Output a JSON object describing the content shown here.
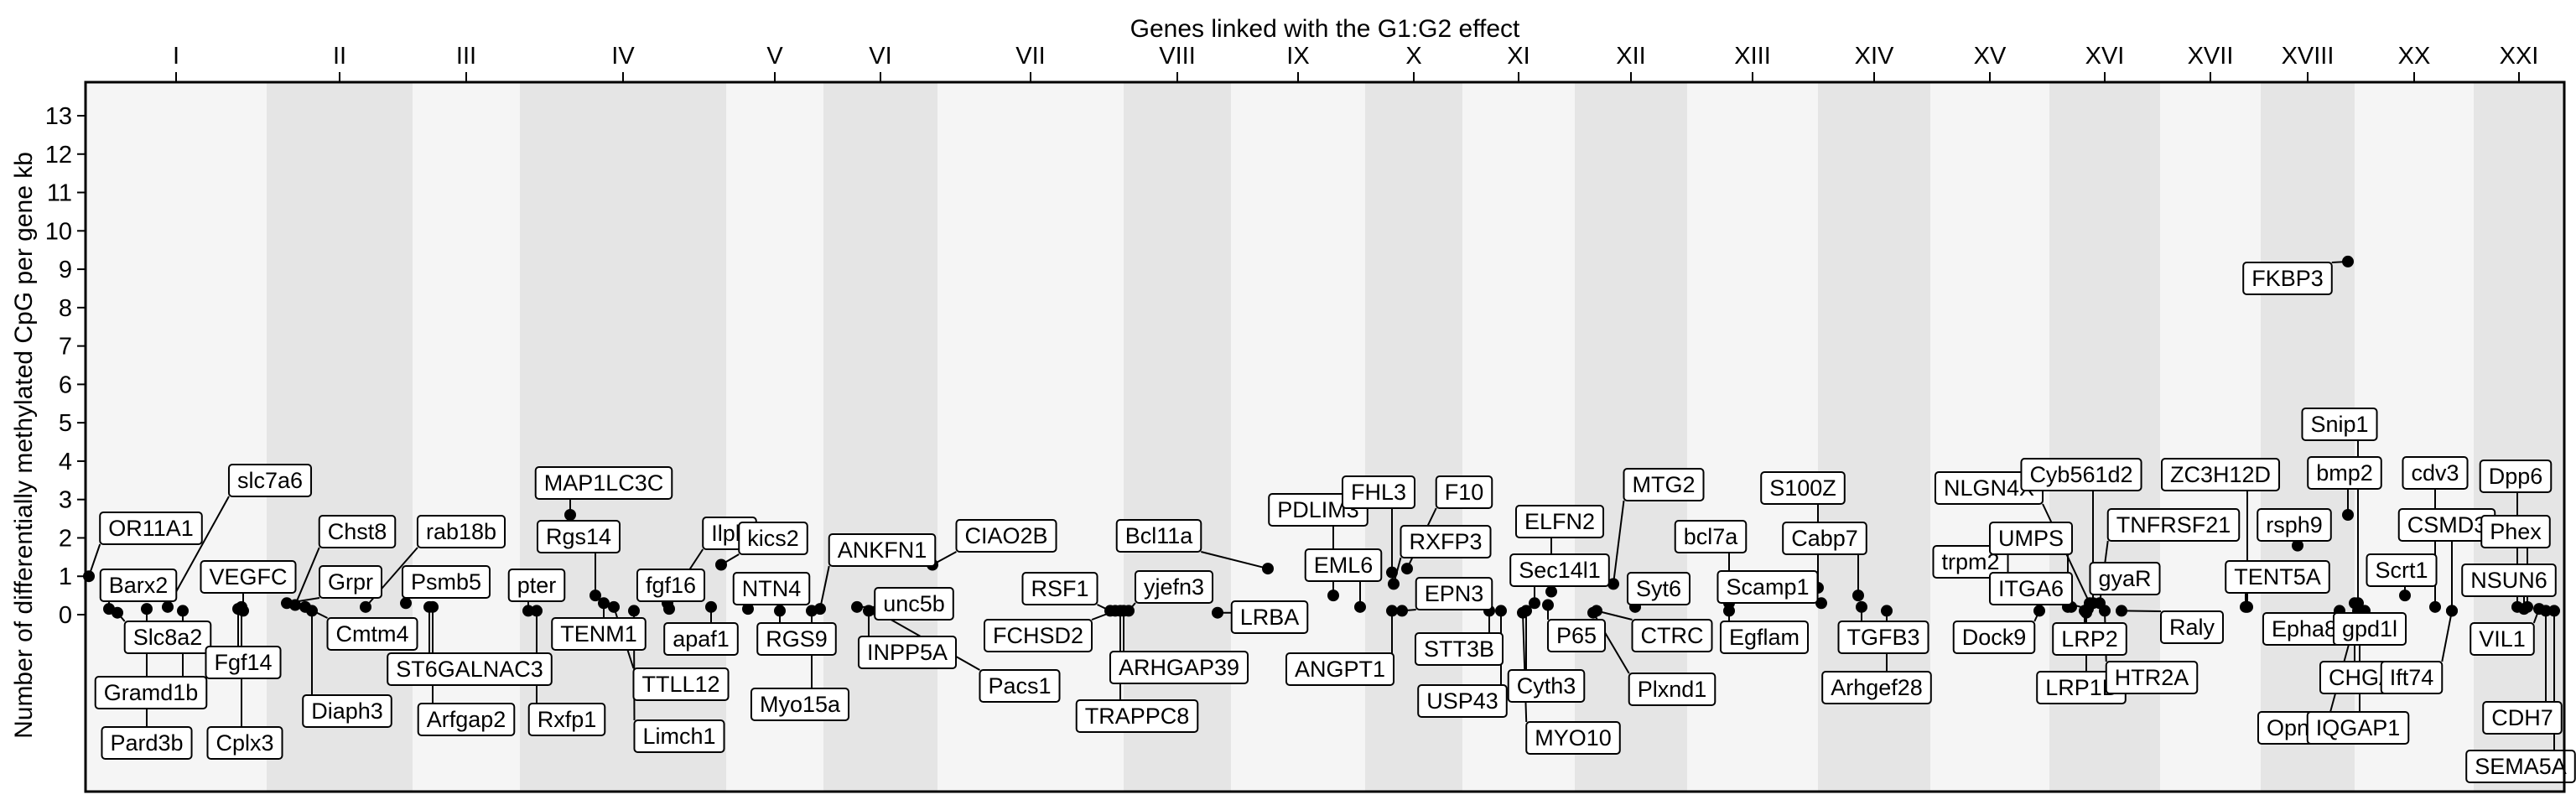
{
  "chart_data": {
    "type": "scatter",
    "title": "Genes linked with the G1:G2 effect",
    "ylabel": "Number of differentially methylated CpG per gene kb",
    "xlabel": "",
    "ylim": [
      -6,
      14
    ],
    "yticks": [
      0,
      1,
      2,
      3,
      4,
      5,
      6,
      7,
      8,
      9,
      10,
      11,
      12,
      13
    ],
    "grid": false,
    "chromosomes": [
      "I",
      "II",
      "III",
      "IV",
      "V",
      "VI",
      "VII",
      "VIII",
      "IX",
      "X",
      "XI",
      "XII",
      "XIII",
      "XIV",
      "XV",
      "XVI",
      "XVII",
      "XVIII",
      "XX",
      "XXI"
    ],
    "points": [
      {
        "gene": "OR11A1",
        "chrom": "I",
        "y": 1.0
      },
      {
        "gene": "Barx2",
        "chrom": "I",
        "y": 0.15
      },
      {
        "gene": "Slc8a2",
        "chrom": "I",
        "y": 0.05
      },
      {
        "gene": "Gramd1b",
        "chrom": "I",
        "y": 0.1
      },
      {
        "gene": "Pard3b",
        "chrom": "I",
        "y": 0.15
      },
      {
        "gene": "slc7a6",
        "chrom": "I",
        "y": 0.2
      },
      {
        "gene": "VEGFC",
        "chrom": "I",
        "y": 0.1
      },
      {
        "gene": "Fgf14",
        "chrom": "I",
        "y": 0.15
      },
      {
        "gene": "Cplx3",
        "chrom": "I",
        "y": 0.2
      },
      {
        "gene": "Grpr",
        "chrom": "II",
        "y": 0.3
      },
      {
        "gene": "Chst8",
        "chrom": "II",
        "y": 0.25
      },
      {
        "gene": "Cmtm4",
        "chrom": "II",
        "y": 0.2
      },
      {
        "gene": "Diaph3",
        "chrom": "II",
        "y": 0.1
      },
      {
        "gene": "rab18b",
        "chrom": "II",
        "y": 0.2
      },
      {
        "gene": "Psmb5",
        "chrom": "III",
        "y": 0.3
      },
      {
        "gene": "ST6GALNAC3",
        "chrom": "III",
        "y": 0.2
      },
      {
        "gene": "Arfgap2",
        "chrom": "III",
        "y": 0.2
      },
      {
        "gene": "pter",
        "chrom": "III",
        "y": 0.1
      },
      {
        "gene": "Rxfp1",
        "chrom": "III",
        "y": 0.1
      },
      {
        "gene": "MAP1LC3C",
        "chrom": "IV",
        "y": 2.6
      },
      {
        "gene": "Rgs14",
        "chrom": "IV",
        "y": 0.5
      },
      {
        "gene": "TENM1",
        "chrom": "IV",
        "y": 0.3
      },
      {
        "gene": "TTLL12",
        "chrom": "IV",
        "y": 0.2
      },
      {
        "gene": "Limch1",
        "chrom": "IV",
        "y": 0.1
      },
      {
        "gene": "Ilph",
        "chrom": "IV",
        "y": 0.3
      },
      {
        "gene": "fgf16",
        "chrom": "IV",
        "y": 0.15
      },
      {
        "gene": "apaf1",
        "chrom": "IV",
        "y": 0.2
      },
      {
        "gene": "kics2",
        "chrom": "IV",
        "y": 1.3
      },
      {
        "gene": "NTN4",
        "chrom": "V",
        "y": 0.15
      },
      {
        "gene": "RGS9",
        "chrom": "V",
        "y": 0.1
      },
      {
        "gene": "Myo15a",
        "chrom": "V",
        "y": 0.1
      },
      {
        "gene": "ANKFN1",
        "chrom": "V",
        "y": 0.15
      },
      {
        "gene": "unc5b",
        "chrom": "VI",
        "y": 0.2
      },
      {
        "gene": "INPP5A",
        "chrom": "VI",
        "y": 0.1
      },
      {
        "gene": "Pacs1",
        "chrom": "VI",
        "y": 0.05
      },
      {
        "gene": "CIAO2B",
        "chrom": "VI",
        "y": 1.3
      },
      {
        "gene": "RSF1",
        "chrom": "VII",
        "y": 0.1
      },
      {
        "gene": "FCHSD2",
        "chrom": "VIII",
        "y": 0.1
      },
      {
        "gene": "Bcl11a",
        "chrom": "VIII",
        "y": 1.2
      },
      {
        "gene": "yjefn3",
        "chrom": "VIII",
        "y": 0.1
      },
      {
        "gene": "ARHGAP39",
        "chrom": "VIII",
        "y": 0.1
      },
      {
        "gene": "TRAPPC8",
        "chrom": "VIII",
        "y": 0.1
      },
      {
        "gene": "LRBA",
        "chrom": "VIII",
        "y": 0.05
      },
      {
        "gene": "PDLIM3",
        "chrom": "IX",
        "y": 0.5
      },
      {
        "gene": "EML6",
        "chrom": "IX",
        "y": 0.2
      },
      {
        "gene": "ANGPT1",
        "chrom": "IX",
        "y": 0.1
      },
      {
        "gene": "FHL3",
        "chrom": "X",
        "y": 1.1
      },
      {
        "gene": "F10",
        "chrom": "X",
        "y": 1.2
      },
      {
        "gene": "RXFP3",
        "chrom": "X",
        "y": 0.8
      },
      {
        "gene": "EPN3",
        "chrom": "X",
        "y": 0.1
      },
      {
        "gene": "STT3B",
        "chrom": "X",
        "y": 0.1
      },
      {
        "gene": "USP43",
        "chrom": "X",
        "y": 0.1
      },
      {
        "gene": "ELFN2",
        "chrom": "XI",
        "y": 0.6
      },
      {
        "gene": "Sec14l1",
        "chrom": "XI",
        "y": 0.3
      },
      {
        "gene": "P65",
        "chrom": "XI",
        "y": 0.25
      },
      {
        "gene": "Cyth3",
        "chrom": "XI",
        "y": 0.1
      },
      {
        "gene": "MYO10",
        "chrom": "XI",
        "y": 0.05
      },
      {
        "gene": "MTG2",
        "chrom": "XI",
        "y": 0.8
      },
      {
        "gene": "Syt6",
        "chrom": "XII",
        "y": 0.2
      },
      {
        "gene": "CTRC",
        "chrom": "XII",
        "y": 0.1
      },
      {
        "gene": "Plxnd1",
        "chrom": "XII",
        "y": 0.05
      },
      {
        "gene": "bcl7a",
        "chrom": "XIII",
        "y": 0.3
      },
      {
        "gene": "S100Z",
        "chrom": "XIII",
        "y": 0.7
      },
      {
        "gene": "Cabp7",
        "chrom": "XIII",
        "y": 0.5
      },
      {
        "gene": "Scamp1",
        "chrom": "XIII",
        "y": 0.3
      },
      {
        "gene": "Egflam",
        "chrom": "XIII",
        "y": 0.1
      },
      {
        "gene": "TGFB3",
        "chrom": "XIV",
        "y": 0.2
      },
      {
        "gene": "Arhgef28",
        "chrom": "XIV",
        "y": 0.1
      },
      {
        "gene": "NLGN4X",
        "chrom": "XVI",
        "y": 0.3
      },
      {
        "gene": "trpm2",
        "chrom": "XVI",
        "y": 0.2
      },
      {
        "gene": "UMPS",
        "chrom": "XVI",
        "y": 0.2
      },
      {
        "gene": "Dock9",
        "chrom": "XVI",
        "y": 0.1
      },
      {
        "gene": "ITGA6",
        "chrom": "XVI",
        "y": 0.15
      },
      {
        "gene": "LRP2",
        "chrom": "XVI",
        "y": 0.1
      },
      {
        "gene": "LRP1B",
        "chrom": "XVI",
        "y": 0.05
      },
      {
        "gene": "Cyb561d2",
        "chrom": "XVI",
        "y": 0.3
      },
      {
        "gene": "TNFRSF21",
        "chrom": "XVI",
        "y": 0.3
      },
      {
        "gene": "gyaR",
        "chrom": "XVI",
        "y": 0.8
      },
      {
        "gene": "HTR2A",
        "chrom": "XVI",
        "y": 0.1
      },
      {
        "gene": "Raly",
        "chrom": "XVII",
        "y": 0.1
      },
      {
        "gene": "ZC3H12D",
        "chrom": "XVII",
        "y": 0.2
      },
      {
        "gene": "TENT5A",
        "chrom": "XVII",
        "y": 0.2
      },
      {
        "gene": "FKBP3",
        "chrom": "XVIII",
        "y": 9.2
      },
      {
        "gene": "Snip1",
        "chrom": "XVIII",
        "y": 0.3
      },
      {
        "gene": "bmp2",
        "chrom": "XVIII",
        "y": 2.6
      },
      {
        "gene": "rsph9",
        "chrom": "XVIII",
        "y": 1.8
      },
      {
        "gene": "Epha8",
        "chrom": "XVIII",
        "y": 0.1
      },
      {
        "gene": "Opn5",
        "chrom": "XVIII",
        "y": 0.1
      },
      {
        "gene": "CHGA",
        "chrom": "XVIII",
        "y": 0.3
      },
      {
        "gene": "IQGAP1",
        "chrom": "XVIII",
        "y": 0.1
      },
      {
        "gene": "gpd1l",
        "chrom": "XVIII",
        "y": 0.1
      },
      {
        "gene": "Scrt1",
        "chrom": "XX",
        "y": 0.5
      },
      {
        "gene": "cdv3",
        "chrom": "XX",
        "y": 0.2
      },
      {
        "gene": "CSMD3",
        "chrom": "XX",
        "y": 0.1
      },
      {
        "gene": "Ift74",
        "chrom": "XX",
        "y": 0.1
      },
      {
        "gene": "Dpp6",
        "chrom": "XXI",
        "y": 0.2
      },
      {
        "gene": "Phex",
        "chrom": "XXI",
        "y": 0.2
      },
      {
        "gene": "NSUN6",
        "chrom": "XXI",
        "y": 0.15
      },
      {
        "gene": "VIL1",
        "chrom": "XXI",
        "y": 0.15
      },
      {
        "gene": "CDH7",
        "chrom": "XXI",
        "y": 0.1
      },
      {
        "gene": "SEMA5A",
        "chrom": "XXI",
        "y": 0.1
      }
    ]
  }
}
